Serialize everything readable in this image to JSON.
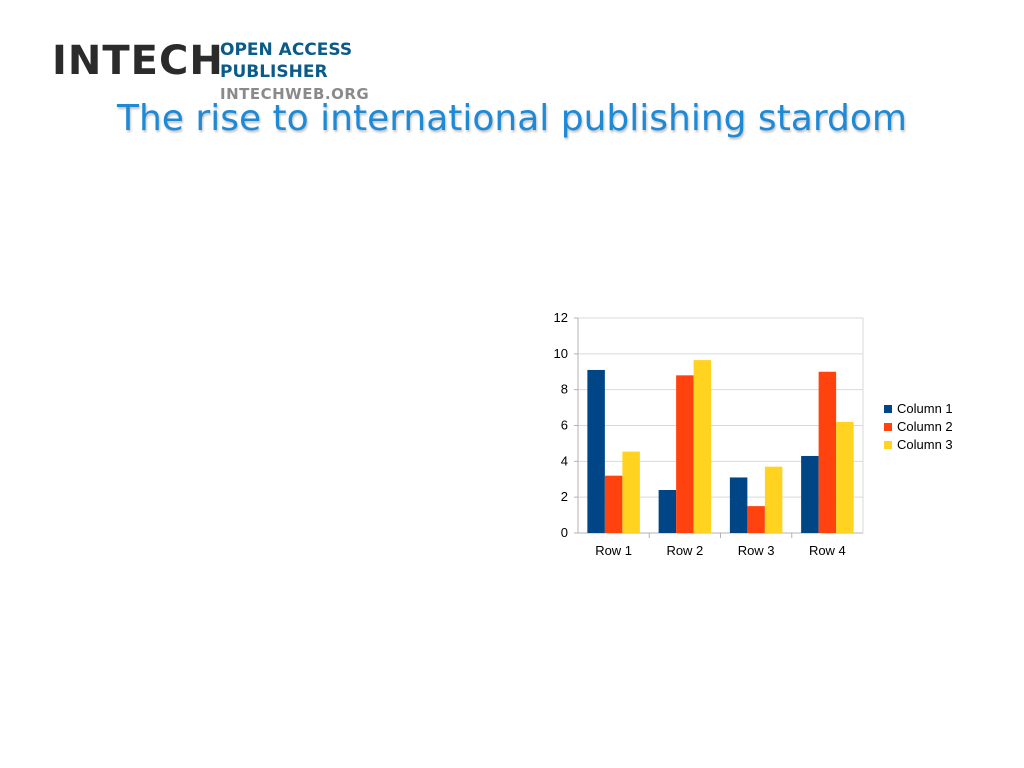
{
  "logo": {
    "main": "INTECH",
    "side_line1": "OPEN ACCESS",
    "side_line2": "PUBLISHER",
    "web": "INTECHWEB.ORG"
  },
  "slide": {
    "title": "The rise to international publishing stardom"
  },
  "chart_data": {
    "type": "bar",
    "title": "",
    "xlabel": "",
    "ylabel": "",
    "categories": [
      "Row 1",
      "Row 2",
      "Row 3",
      "Row 4"
    ],
    "series": [
      {
        "name": "Column 1",
        "values": [
          9.1,
          2.4,
          3.1,
          4.3
        ],
        "color": "#004586"
      },
      {
        "name": "Column 2",
        "values": [
          3.2,
          8.8,
          1.5,
          9.0
        ],
        "color": "#ff420e"
      },
      {
        "name": "Column 3",
        "values": [
          4.54,
          9.65,
          3.7,
          6.2
        ],
        "color": "#ffd320"
      }
    ],
    "ylim": [
      0,
      12
    ],
    "yticks": [
      0,
      2,
      4,
      6,
      8,
      10,
      12
    ],
    "grid": true,
    "legend": "right"
  }
}
